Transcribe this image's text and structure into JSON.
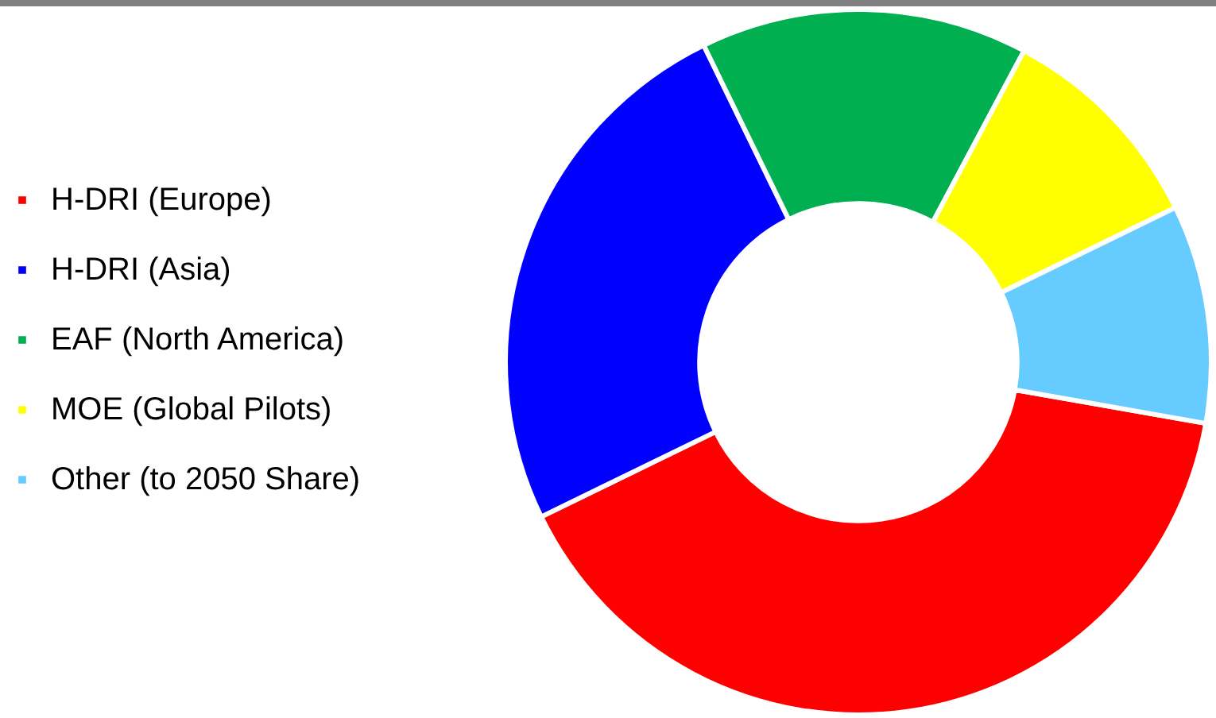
{
  "chart_data": {
    "type": "donut",
    "categories": [
      "H-DRI (Europe)",
      "H-DRI (Asia)",
      "EAF (North America)",
      "MOE (Global Pilots)",
      "Other (to 2050 Share)"
    ],
    "values": [
      40,
      25,
      15,
      10,
      10
    ],
    "colors": [
      "#ff0000",
      "#0000ff",
      "#00b050",
      "#ffff00",
      "#66ccff"
    ],
    "legend": "left"
  }
}
